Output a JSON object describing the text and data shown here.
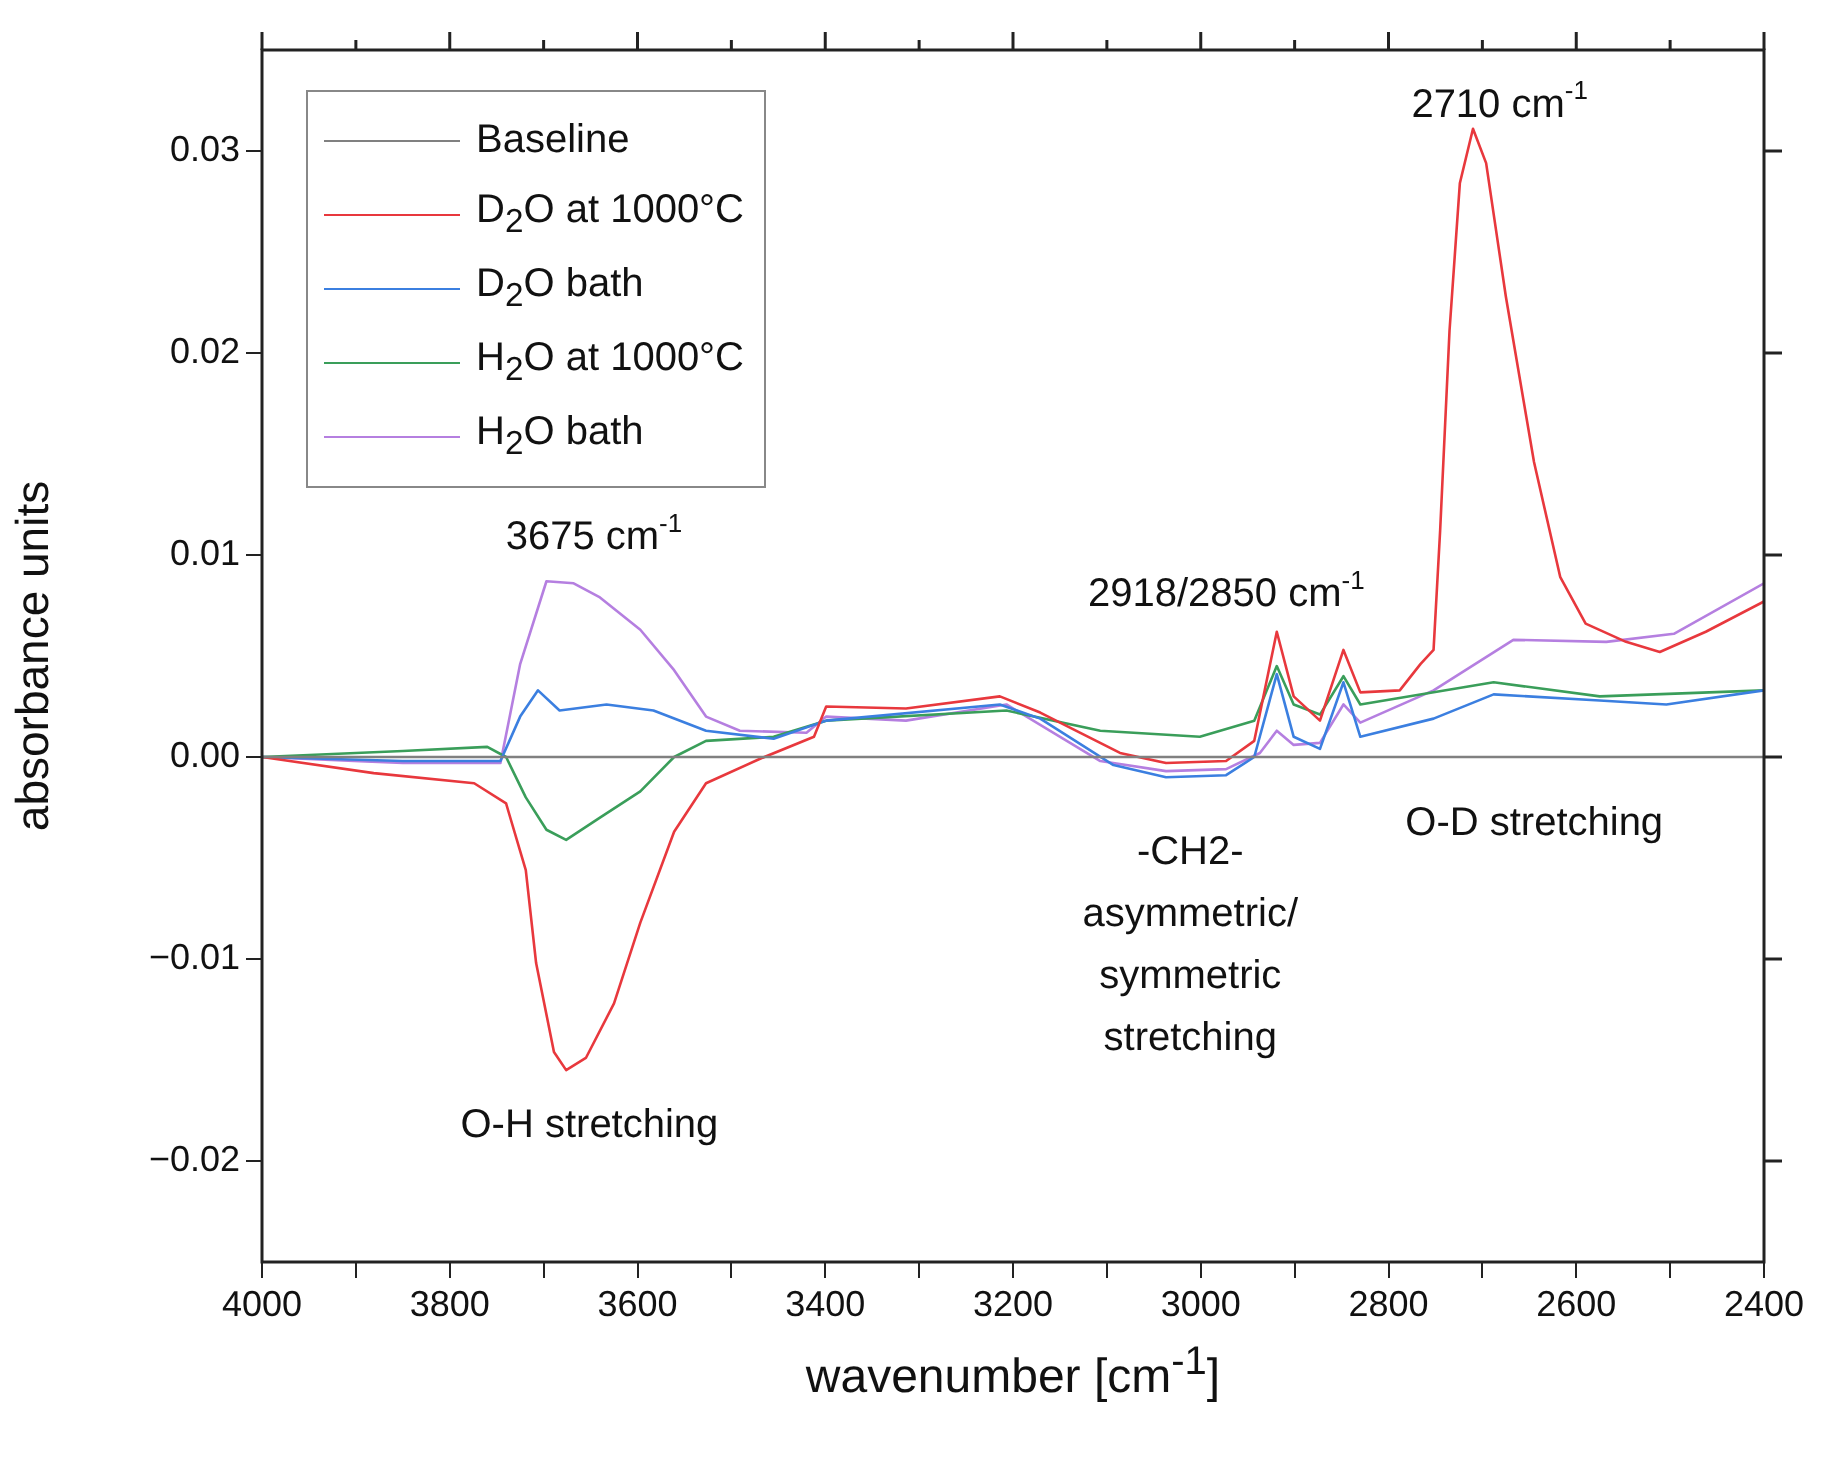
{
  "chart_data": {
    "type": "line",
    "xlabel": "wavenumber [cm$^{-1}$]",
    "ylabel": "absorbance units",
    "xlim": [
      4000,
      2400
    ],
    "xticks": [
      4000,
      {
        "value": 3900,
        "label": null
      },
      3800,
      {
        "value": 3700,
        "label": null
      },
      3600,
      {
        "value": 3500,
        "label": null
      },
      3400,
      {
        "value": 3300,
        "label": null
      },
      3200,
      {
        "value": 3100,
        "label": null
      },
      3000,
      {
        "value": 2900,
        "label": null
      },
      2800,
      {
        "value": 2700,
        "label": null
      },
      2600,
      {
        "value": 2500,
        "label": null
      },
      2400
    ],
    "ylim": [
      -0.025,
      0.035
    ],
    "yticks": [
      {
        "value": -0.02,
        "label": "−0.02"
      },
      {
        "value": -0.01,
        "label": "−0.01"
      },
      {
        "value": 0,
        "label": "0.00"
      },
      0.01,
      0.02,
      0.03
    ],
    "legend": "top left",
    "marker": "none",
    "series": [
      {
        "name": "Baseline",
        "color": "#808080",
        "x": [
          4000,
          2400
        ],
        "values": [
          0,
          0
        ]
      },
      {
        "name": "D$_{2}$O at 1000°C",
        "color": "#e8383d",
        "x": [
          4000,
          3881,
          3774,
          3740,
          3719,
          3708,
          3689,
          3676,
          3655,
          3625,
          3597,
          3561,
          3527,
          3470,
          3412,
          3399,
          3314,
          3214,
          3171,
          3086,
          3037,
          2973,
          2943,
          2919,
          2901,
          2873,
          2848,
          2830,
          2788,
          2766,
          2752,
          2745,
          2735,
          2724,
          2710,
          2696,
          2675,
          2645,
          2617,
          2590,
          2547,
          2511,
          2462,
          2400
        ],
        "values": [
          0,
          -0.0008,
          -0.0013,
          -0.0023,
          -0.0056,
          -0.0102,
          -0.0146,
          -0.0155,
          -0.0149,
          -0.0122,
          -0.0082,
          -0.0037,
          -0.0013,
          -0.0001,
          0.001,
          0.0025,
          0.0024,
          0.003,
          0.0022,
          0.0002,
          -0.0003,
          -0.0002,
          0.0008,
          0.0062,
          0.003,
          0.0018,
          0.0053,
          0.0032,
          0.0033,
          0.0046,
          0.0053,
          0.0112,
          0.0211,
          0.0284,
          0.0311,
          0.0294,
          0.0228,
          0.0146,
          0.0089,
          0.0066,
          0.0057,
          0.0052,
          0.0062,
          0.0077
        ]
      },
      {
        "name": "D$_{2}$O bath",
        "color": "#3b7fe0",
        "x": [
          4000,
          3850,
          3746,
          3725,
          3706,
          3683,
          3633,
          3583,
          3527,
          3455,
          3399,
          3214,
          3171,
          3093,
          3037,
          2973,
          2943,
          2919,
          2901,
          2873,
          2848,
          2830,
          2752,
          2688,
          2575,
          2504,
          2400
        ],
        "values": [
          0,
          -0.0002,
          -0.0002,
          0.002,
          0.0033,
          0.0023,
          0.0026,
          0.0023,
          0.0013,
          0.0009,
          0.0018,
          0.0026,
          0.0019,
          -0.0004,
          -0.001,
          -0.0009,
          0,
          0.0041,
          0.001,
          0.0004,
          0.0037,
          0.001,
          0.0019,
          0.0031,
          0.0028,
          0.0026,
          0.0033
        ]
      },
      {
        "name": "H$_{2}$O at 1000°C",
        "color": "#3a9e5a",
        "x": [
          4000,
          3850,
          3760,
          3740,
          3719,
          3697,
          3676,
          3640,
          3597,
          3561,
          3527,
          3455,
          3399,
          3207,
          3107,
          3001,
          2943,
          2919,
          2901,
          2873,
          2848,
          2830,
          2688,
          2575,
          2400
        ],
        "values": [
          0,
          0.0003,
          0.0005,
          0,
          -0.002,
          -0.0036,
          -0.0041,
          -0.003,
          -0.0017,
          0,
          0.0008,
          0.001,
          0.0018,
          0.0023,
          0.0013,
          0.001,
          0.0018,
          0.0045,
          0.0026,
          0.0021,
          0.004,
          0.0026,
          0.0037,
          0.003,
          0.0033
        ]
      },
      {
        "name": "H$_{2}$O bath",
        "color": "#b57fe0",
        "x": [
          4000,
          3850,
          3746,
          3725,
          3697,
          3668,
          3640,
          3597,
          3561,
          3527,
          3491,
          3420,
          3399,
          3314,
          3207,
          3107,
          3037,
          2973,
          2937,
          2919,
          2901,
          2873,
          2848,
          2830,
          2752,
          2667,
          2568,
          2496,
          2400
        ],
        "values": [
          0,
          -0.0003,
          -0.0003,
          0.0046,
          0.0087,
          0.0086,
          0.0079,
          0.0063,
          0.0043,
          0.002,
          0.0013,
          0.0012,
          0.002,
          0.0018,
          0.0026,
          -0.0002,
          -0.0007,
          -0.0006,
          0.0002,
          0.0013,
          0.0006,
          0.0007,
          0.0026,
          0.0017,
          0.0033,
          0.0058,
          0.0057,
          0.0061,
          0.0086
        ]
      }
    ],
    "annotations": [
      "3675 cm$^{-1}$",
      "O-H stretching",
      "2918/2850 cm$^{-1}$",
      "2710 cm$^{-1}$",
      "O-D stretching",
      "-CH2-\nasymmetric/\nsymmetric\nstretching"
    ]
  }
}
